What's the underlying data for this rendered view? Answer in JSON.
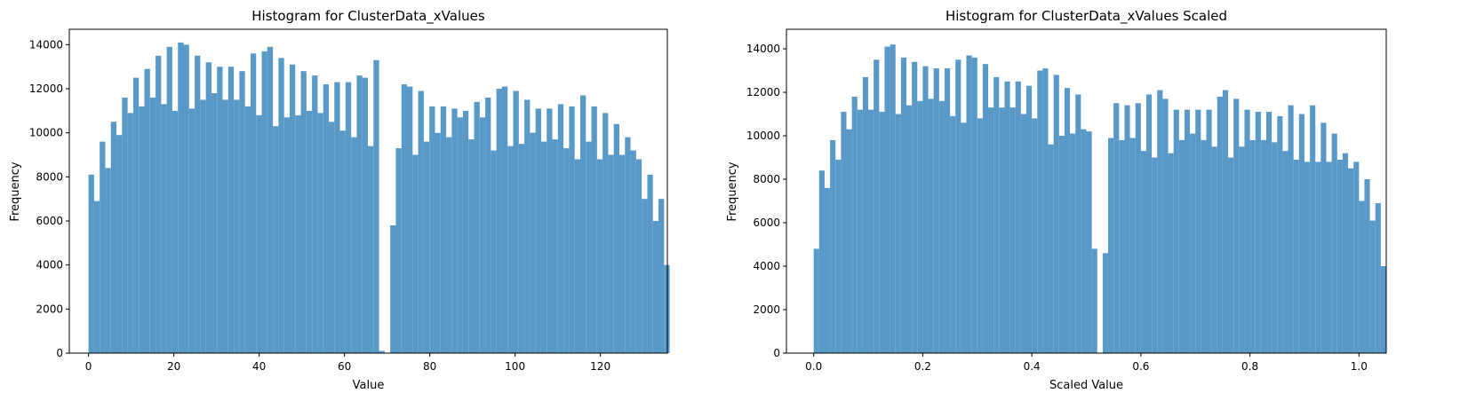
{
  "colors": {
    "bar": "#5899c7",
    "axis": "#000000",
    "background": "#ffffff"
  },
  "chart_data": [
    {
      "type": "bar",
      "title": "Histogram for ClusterData_xValues",
      "xlabel": "Value",
      "ylabel": "Frequency",
      "xlim": [
        -4.5,
        135.7
      ],
      "ylim": [
        0,
        14700
      ],
      "bin_start": 0,
      "bin_width": 1.31,
      "xticks": [
        0,
        20,
        40,
        60,
        80,
        100,
        120
      ],
      "xtick_labels": [
        "0",
        "20",
        "40",
        "60",
        "80",
        "100",
        "120"
      ],
      "yticks": [
        0,
        2000,
        4000,
        6000,
        8000,
        10000,
        12000,
        14000
      ],
      "ytick_labels": [
        "0",
        "2000",
        "4000",
        "6000",
        "8000",
        "10000",
        "12000",
        "14000"
      ],
      "grid": false,
      "values": [
        8100,
        6900,
        9600,
        8400,
        10500,
        9900,
        11600,
        10900,
        12500,
        11200,
        12900,
        11600,
        13500,
        11300,
        13900,
        11000,
        14100,
        14000,
        11100,
        13500,
        11500,
        13200,
        11800,
        13000,
        11500,
        13000,
        11500,
        12800,
        11200,
        13600,
        10800,
        13700,
        13900,
        10300,
        13400,
        10700,
        13100,
        10800,
        12800,
        11000,
        12600,
        10900,
        12200,
        10500,
        12300,
        10100,
        12300,
        9800,
        12600,
        12500,
        9400,
        13300,
        100,
        0,
        5800,
        9300,
        12200,
        12100,
        9000,
        11900,
        9600,
        11200,
        10000,
        11200,
        9800,
        11100,
        10700,
        11000,
        9700,
        11400,
        10700,
        11600,
        9200,
        12000,
        12100,
        9400,
        11900,
        9500,
        11500,
        10000,
        11100,
        9600,
        11100,
        9700,
        11300,
        9300,
        11200,
        8800,
        11700,
        9600,
        11200,
        8800,
        10900,
        9000,
        10400,
        9000,
        9800,
        9200,
        8800,
        7000,
        8100,
        6000,
        7000,
        4000
      ]
    },
    {
      "type": "bar",
      "title": "Histogram for ClusterData_xValues Scaled",
      "xlabel": "Scaled Value",
      "ylabel": "Frequency",
      "xlim": [
        -0.05,
        1.05
      ],
      "ylim": [
        0,
        14900
      ],
      "bin_start": 0,
      "bin_width": 0.01,
      "xticks": [
        0.0,
        0.2,
        0.4,
        0.6,
        0.8,
        1.0
      ],
      "xtick_labels": [
        "0.0",
        "0.2",
        "0.4",
        "0.6",
        "0.8",
        "1.0"
      ],
      "yticks": [
        0,
        2000,
        4000,
        6000,
        8000,
        10000,
        12000,
        14000
      ],
      "ytick_labels": [
        "0",
        "2000",
        "4000",
        "6000",
        "8000",
        "10000",
        "12000",
        "14000"
      ],
      "grid": false,
      "values": [
        4800,
        8400,
        7600,
        9800,
        8900,
        11100,
        10300,
        11800,
        11200,
        12700,
        11200,
        13500,
        11100,
        14100,
        14200,
        11000,
        13600,
        11400,
        13400,
        11600,
        13200,
        11700,
        13100,
        11600,
        13100,
        10900,
        13500,
        10600,
        13700,
        13600,
        10800,
        13300,
        11300,
        12700,
        11300,
        12500,
        11300,
        12500,
        11000,
        12300,
        10800,
        13000,
        13100,
        9600,
        12800,
        10000,
        12200,
        10100,
        11900,
        10300,
        10200,
        4800,
        0,
        4600,
        9900,
        11500,
        9800,
        11400,
        9900,
        11500,
        9300,
        11900,
        9000,
        12100,
        11700,
        9200,
        11200,
        9800,
        11200,
        10100,
        11200,
        9800,
        11200,
        9500,
        11800,
        12100,
        9000,
        11700,
        9500,
        11200,
        9800,
        11100,
        9800,
        11100,
        9700,
        10900,
        9300,
        11400,
        8900,
        11000,
        8800,
        11400,
        8800,
        10600,
        8800,
        10100,
        8900,
        9200,
        8500,
        8800,
        7000,
        8000,
        6100,
        6900,
        4000
      ]
    }
  ]
}
